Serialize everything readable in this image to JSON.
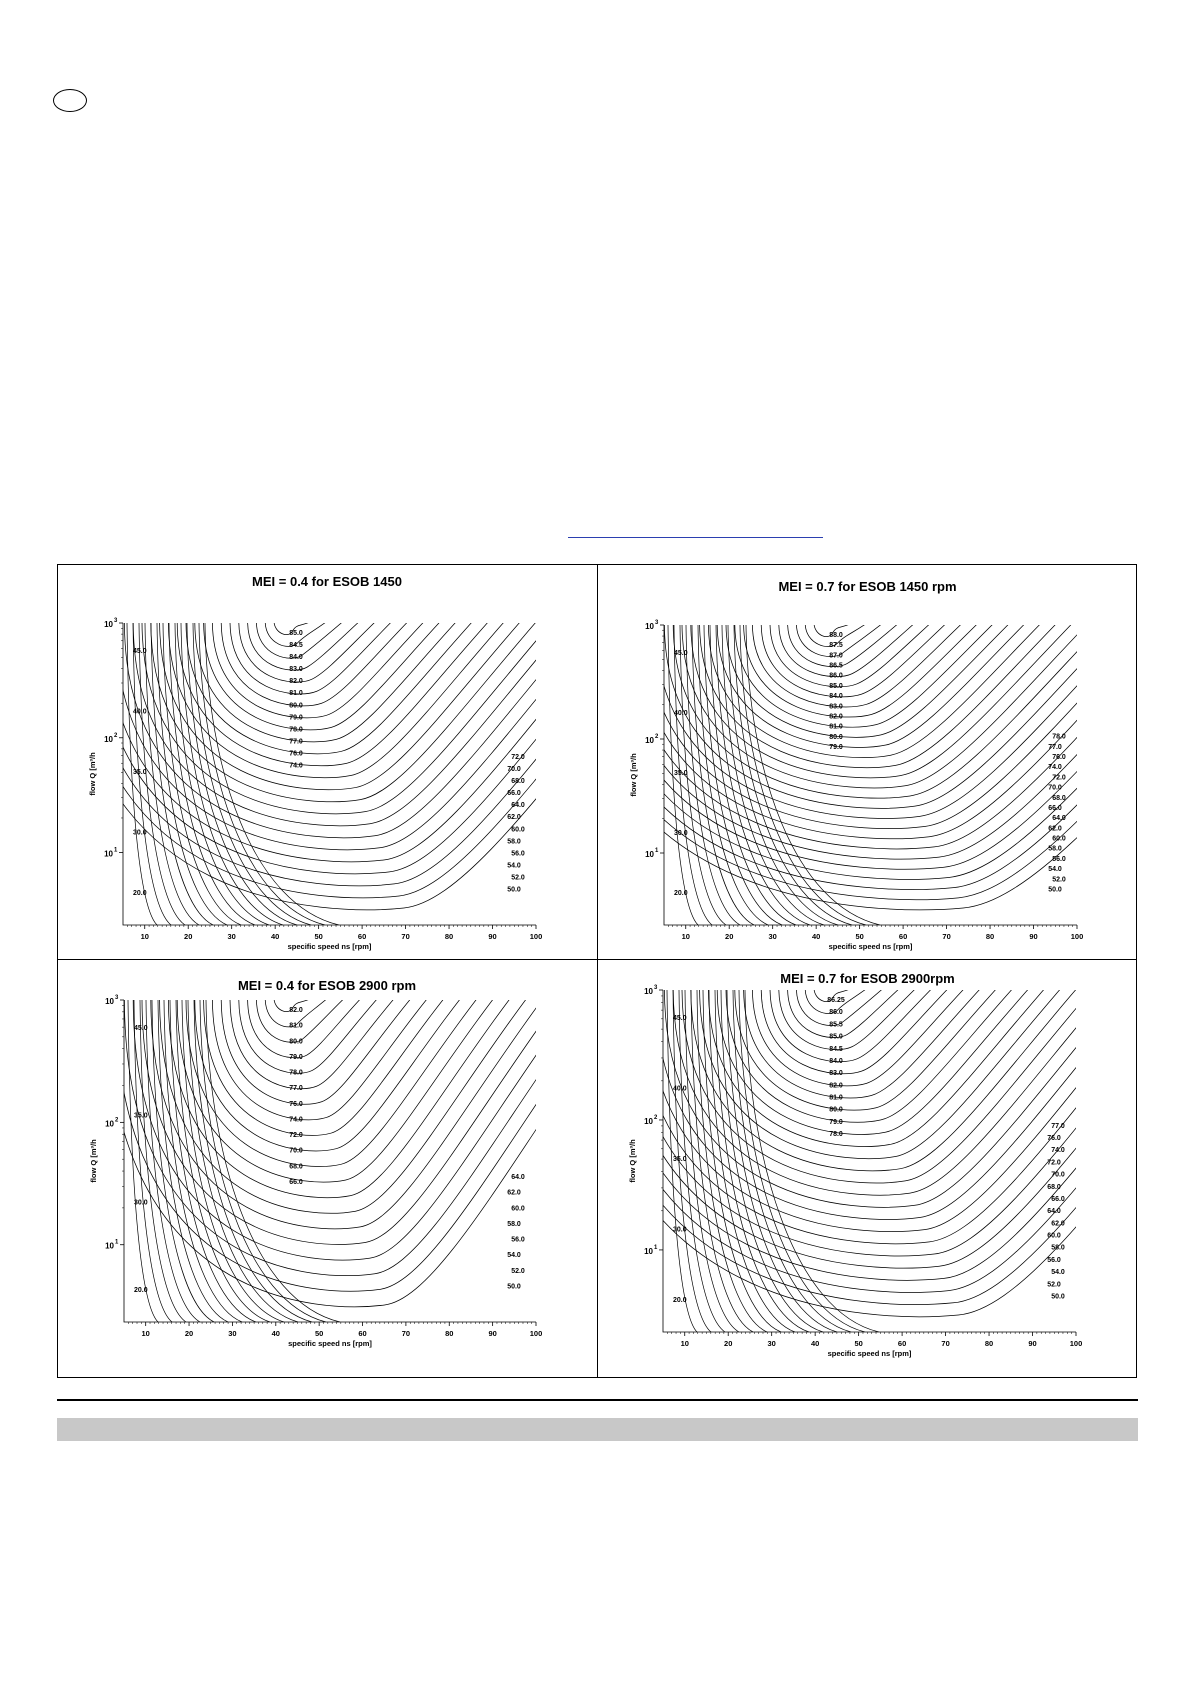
{
  "page": {
    "language_badge": ""
  },
  "chart_data": [
    {
      "type": "contour",
      "title": "MEI = 0.4 for ESOB 1450",
      "xlabel": "specific speed ns [rpm]",
      "ylabel": "flow Q [m³/h",
      "xlim": [
        5,
        100
      ],
      "xticks": [
        10,
        20,
        30,
        40,
        50,
        60,
        70,
        80,
        90,
        100
      ],
      "y_scale": "log",
      "yticks": [
        "10^1",
        "10^2",
        "10^3"
      ],
      "contour_levels": [
        85.0,
        84.5,
        84.0,
        83.0,
        82.0,
        81.0,
        80.0,
        79.0,
        78.0,
        77.0,
        76.0,
        74.0,
        72.0,
        70.0,
        68.0,
        66.0,
        64.0,
        62.0,
        60.0,
        58.0,
        56.0,
        54.0,
        52.0,
        50.0,
        45.0,
        40.0,
        35.0,
        30.0,
        20.0
      ]
    },
    {
      "type": "contour",
      "title": "MEI = 0.7 for ESOB 1450 rpm",
      "xlabel": "specific speed ns [rpm]",
      "ylabel": "flow Q [m³/h",
      "xlim": [
        5,
        100
      ],
      "xticks": [
        10,
        20,
        30,
        40,
        50,
        60,
        70,
        80,
        90,
        100
      ],
      "y_scale": "log",
      "yticks": [
        "10^1",
        "10^2",
        "10^3"
      ],
      "contour_levels": [
        88.0,
        87.5,
        87.0,
        86.5,
        86.0,
        85.0,
        84.0,
        83.0,
        82.0,
        81.0,
        80.0,
        79.0,
        78.0,
        77.0,
        76.0,
        74.0,
        72.0,
        70.0,
        68.0,
        66.0,
        64.0,
        62.0,
        60.0,
        58.0,
        56.0,
        54.0,
        52.0,
        50.0,
        45.0,
        40.0,
        35.0,
        30.0,
        20.0
      ]
    },
    {
      "type": "contour",
      "title": "MEI = 0.4 for ESOB 2900 rpm",
      "xlabel": "specific speed ns [rpm]",
      "ylabel": "flow Q [m³/h",
      "xlim": [
        5,
        100
      ],
      "xticks": [
        10,
        20,
        30,
        40,
        50,
        60,
        70,
        80,
        90,
        100
      ],
      "y_scale": "log",
      "yticks": [
        "10^1",
        "10^2",
        "10^3"
      ],
      "contour_levels": [
        82.0,
        81.0,
        80.0,
        79.0,
        78.0,
        77.0,
        76.0,
        74.0,
        72.0,
        70.0,
        68.0,
        66.0,
        64.0,
        62.0,
        60.0,
        58.0,
        56.0,
        54.0,
        52.0,
        50.0,
        45.0,
        35.0,
        30.0,
        20.0
      ]
    },
    {
      "type": "contour",
      "title": "MEI = 0.7 for ESOB 2900rpm",
      "xlabel": "specific speed ns [rpm]",
      "ylabel": "flow Q [m³/h",
      "xlim": [
        5,
        100
      ],
      "xticks": [
        10,
        20,
        30,
        40,
        50,
        60,
        70,
        80,
        90,
        100
      ],
      "y_scale": "log",
      "yticks": [
        "10^1",
        "10^2",
        "10^3"
      ],
      "contour_levels": [
        86.25,
        86.0,
        85.5,
        85.0,
        84.5,
        84.0,
        83.0,
        82.0,
        81.0,
        80.0,
        79.0,
        78.0,
        77.0,
        76.0,
        74.0,
        72.0,
        70.0,
        68.0,
        66.0,
        64.0,
        62.0,
        60.0,
        58.0,
        56.0,
        54.0,
        52.0,
        50.0,
        45.0,
        40.0,
        35.0,
        30.0,
        20.0
      ]
    }
  ]
}
